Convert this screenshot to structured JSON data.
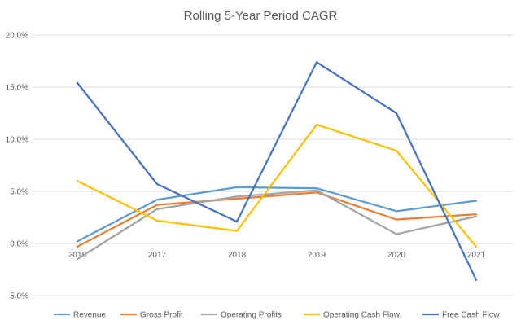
{
  "chart_data": {
    "type": "line",
    "title": "Rolling 5-Year Period CAGR",
    "xlabel": "",
    "ylabel": "",
    "categories": [
      "2016",
      "2017",
      "2018",
      "2019",
      "2020",
      "2021"
    ],
    "y_ticks": [
      "-5.0%",
      "0.0%",
      "5.0%",
      "10.0%",
      "15.0%",
      "20.0%"
    ],
    "ylim": [
      -5,
      20
    ],
    "grid": true,
    "legend_position": "bottom",
    "series": [
      {
        "name": "Revenue",
        "color": "#5b9bd5",
        "values": [
          0.2,
          4.2,
          5.4,
          5.3,
          3.1,
          4.1
        ]
      },
      {
        "name": "Gross Profit",
        "color": "#ed7d31",
        "values": [
          -0.3,
          3.7,
          4.3,
          4.9,
          2.3,
          2.8
        ]
      },
      {
        "name": "Operating Profits",
        "color": "#a5a5a5",
        "values": [
          -1.5,
          3.3,
          4.5,
          5.1,
          0.9,
          2.6
        ]
      },
      {
        "name": "Operating Cash Flow",
        "color": "#ffc000",
        "values": [
          6.0,
          2.2,
          1.2,
          11.4,
          8.9,
          -0.3
        ]
      },
      {
        "name": "Free Cash Flow",
        "color": "#4472c4",
        "values": [
          15.4,
          5.7,
          2.1,
          17.4,
          12.5,
          -3.5
        ]
      }
    ]
  }
}
